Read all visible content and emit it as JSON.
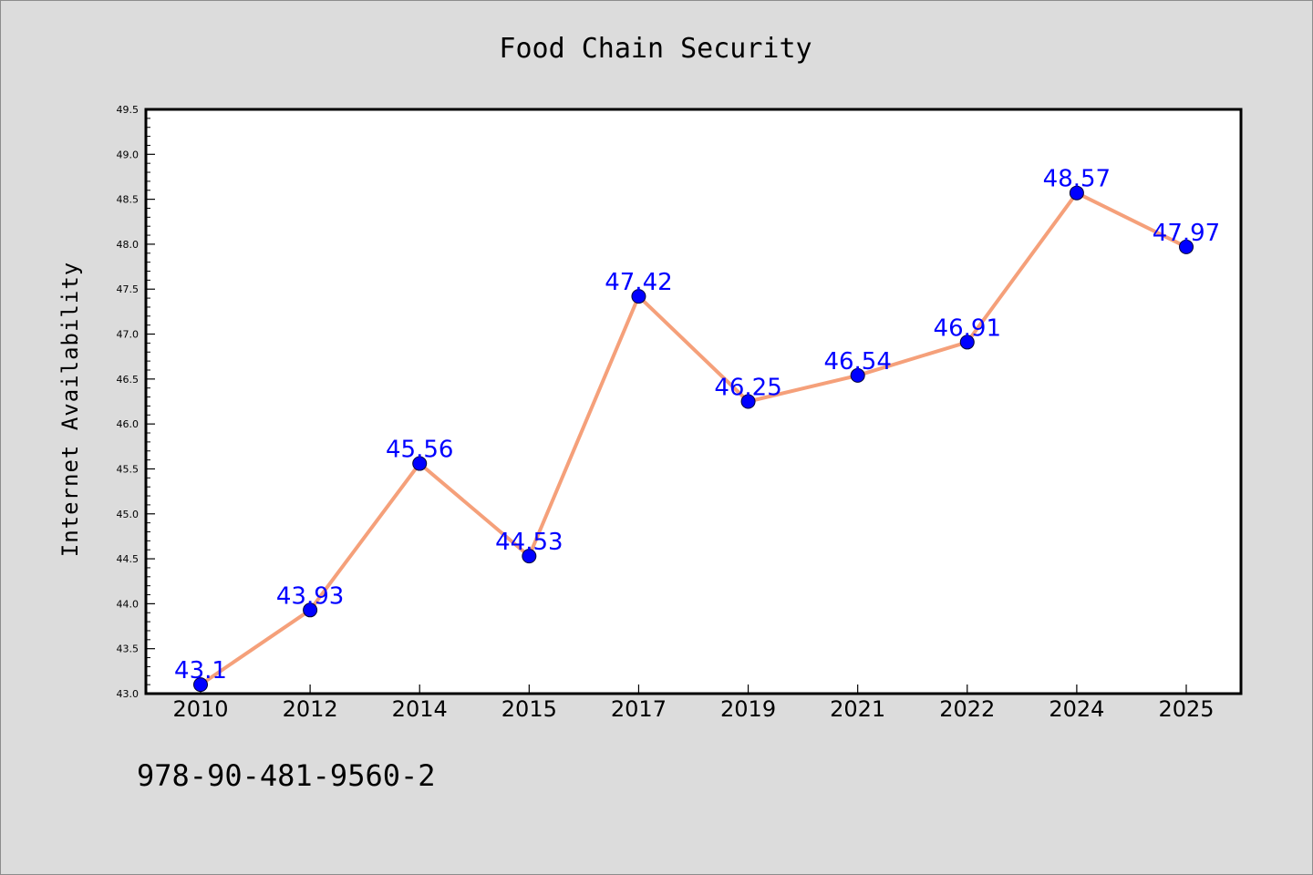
{
  "chart_data": {
    "type": "line",
    "title": "Food Chain Security",
    "xlabel": "",
    "ylabel": "Internet Availability",
    "categories": [
      "2010",
      "2012",
      "2014",
      "2015",
      "2017",
      "2019",
      "2021",
      "2022",
      "2024",
      "2025"
    ],
    "series": [
      {
        "values": [
          43.1,
          43.93,
          45.56,
          44.53,
          47.42,
          46.25,
          46.54,
          46.91,
          48.57,
          47.97
        ]
      }
    ],
    "data_labels": [
      "43.1",
      "43.93",
      "45.56",
      "44.53",
      "47.42",
      "46.25",
      "46.54",
      "46.91",
      "48.57",
      "47.97"
    ],
    "ylim": [
      43.0,
      49.5
    ],
    "yticks": [
      "43.0",
      "43.5",
      "44.0",
      "44.5",
      "45.0",
      "45.5",
      "46.0",
      "46.5",
      "47.0",
      "47.5",
      "48.0",
      "48.5",
      "49.0",
      "49.5"
    ],
    "grid": false,
    "colors": {
      "line": "#f5a07a",
      "marker": "#0000ff",
      "data_label": "#0000ff",
      "background": "#dcdcdc",
      "plot_background": "#ffffff"
    }
  },
  "footer": {
    "isbn": "978-90-481-9560-2"
  }
}
